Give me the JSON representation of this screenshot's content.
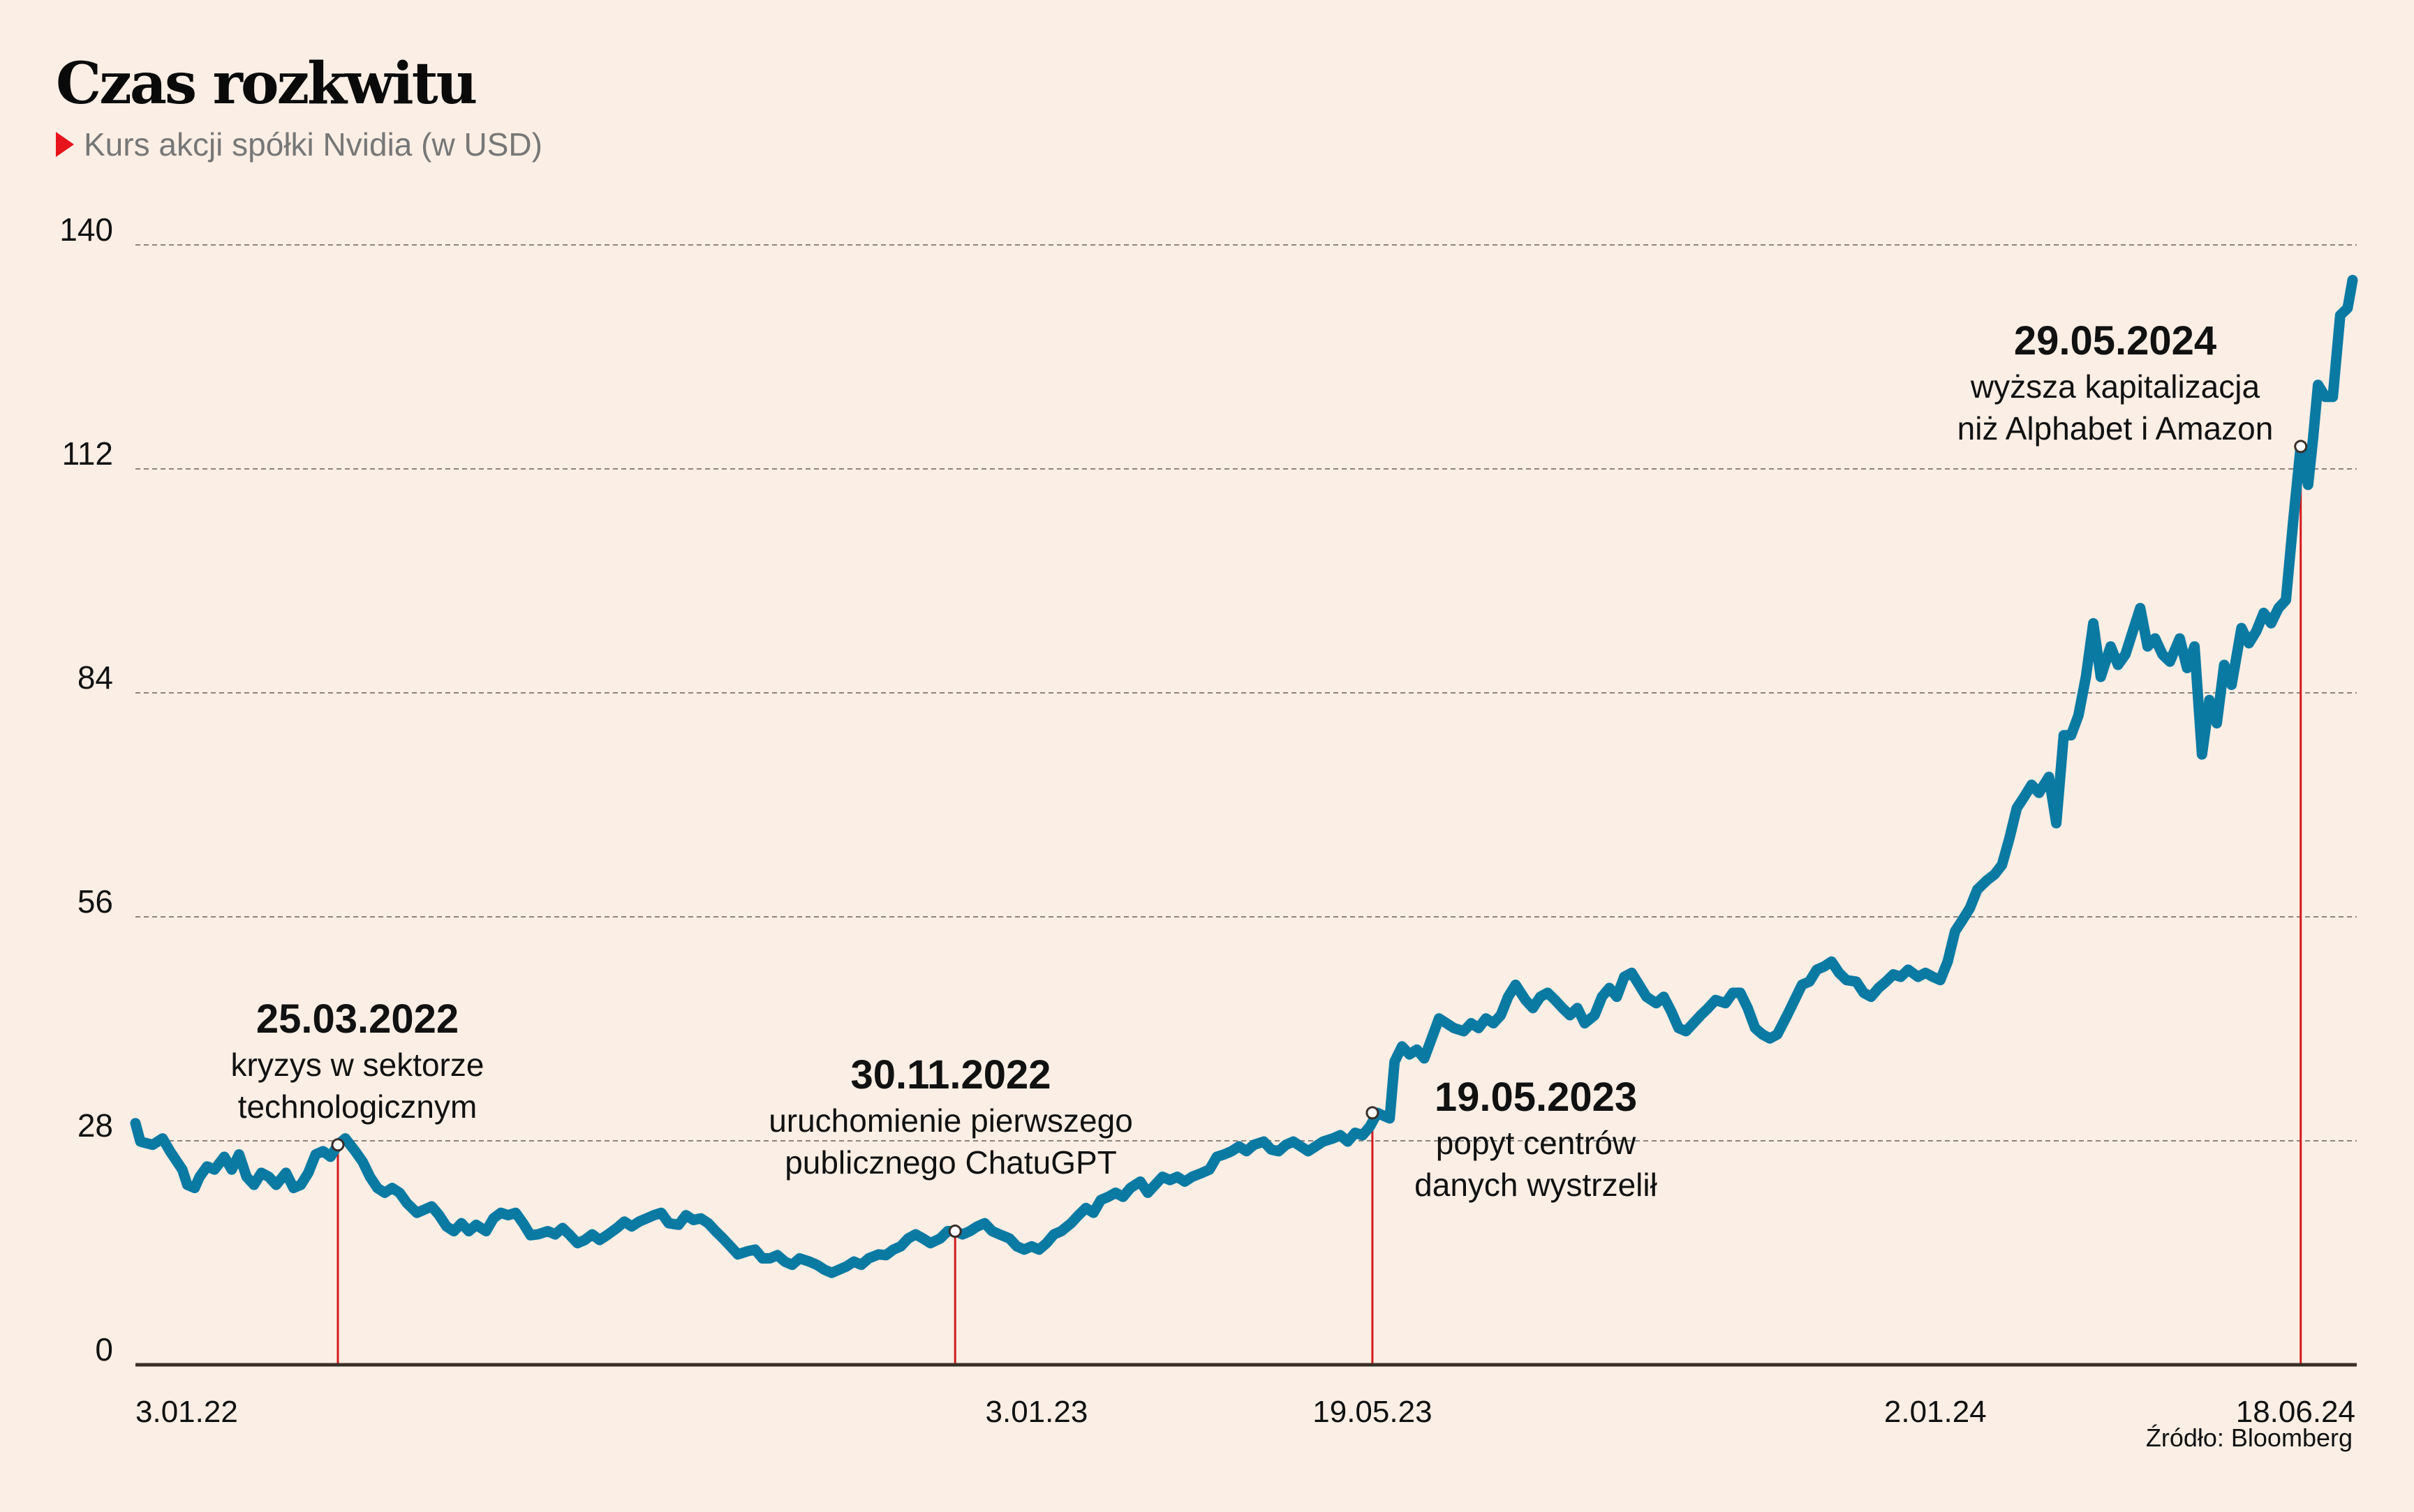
{
  "header": {
    "title": "Czas rozkwitu",
    "subtitle": "Kurs akcji spółki Nvidia (w USD)",
    "subtitle_marker_color": "#e8141c"
  },
  "source": "Źródło: Bloomberg",
  "chart_data": {
    "type": "line",
    "title": "Czas rozkwitu",
    "subtitle": "Kurs akcji spółki Nvidia (w USD)",
    "xlabel": "",
    "ylabel": "",
    "x_unit": "days since 3.01.22",
    "xlim": [
      0,
      898
    ],
    "ylim": [
      0,
      140
    ],
    "grid": true,
    "line_color": "#0a7aa3",
    "marker_line_color": "#d31a1f",
    "yticks": [
      0,
      28,
      56,
      84,
      112,
      140
    ],
    "ytick_labels": [
      "0",
      "28",
      "56",
      "84",
      "112",
      "140"
    ],
    "xticks": [
      {
        "day": 0,
        "label": "3.01.22"
      },
      {
        "day": 365,
        "label": "3.01.23"
      },
      {
        "day": 501,
        "label": "19.05.23"
      },
      {
        "day": 729,
        "label": "2.01.24"
      },
      {
        "day": 897,
        "label": "18.06.24"
      }
    ],
    "annotations": [
      {
        "day": 82,
        "value": 27.5,
        "date": "25.03.2022",
        "lines": [
          "kryzys w sektorze",
          "technologicznym"
        ],
        "placement": "above-left"
      },
      {
        "day": 332,
        "value": 16.7,
        "date": "30.11.2022",
        "lines": [
          "uruchomienie pierwszego",
          "publicznego ChatuGPT"
        ],
        "placement": "above"
      },
      {
        "day": 501,
        "value": 31.5,
        "date": "19.05.2023",
        "lines": [
          "popyt centrów",
          "danych wystrzelił"
        ],
        "placement": "right"
      },
      {
        "day": 877,
        "value": 114.8,
        "date": "29.05.2024",
        "lines": [
          "wyższa kapitalizacja",
          "niż Alphabet i Amazon"
        ],
        "placement": "above-left"
      }
    ],
    "series": [
      {
        "name": "Nvidia",
        "days": [
          0,
          2,
          7,
          11,
          14,
          19,
          21,
          24,
          26,
          29,
          32,
          36,
          39,
          42,
          45,
          48,
          51,
          54,
          57,
          61,
          64,
          67,
          70,
          73,
          76,
          79,
          82,
          85,
          89,
          92,
          95,
          98,
          101,
          104,
          107,
          110,
          114,
          117,
          120,
          123,
          126,
          129,
          132,
          135,
          138,
          142,
          145,
          148,
          151,
          154,
          157,
          160,
          163,
          167,
          170,
          173,
          176,
          179,
          182,
          185,
          188,
          191,
          195,
          198,
          201,
          204,
          207,
          210,
          213,
          216,
          220,
          223,
          226,
          229,
          232,
          235,
          238,
          241,
          244,
          248,
          251,
          254,
          257,
          260,
          263,
          266,
          269,
          273,
          276,
          279,
          282,
          285,
          288,
          291,
          294,
          297,
          301,
          304,
          307,
          310,
          313,
          316,
          319,
          322,
          326,
          329,
          332,
          335,
          338,
          341,
          344,
          347,
          350,
          354,
          357,
          360,
          363,
          366,
          369,
          372,
          375,
          379,
          382,
          385,
          388,
          391,
          394,
          397,
          400,
          403,
          407,
          410,
          413,
          416,
          419,
          422,
          425,
          428,
          432,
          435,
          438,
          441,
          444,
          447,
          450,
          453,
          457,
          460,
          463,
          466,
          469,
          472,
          475,
          478,
          481,
          485,
          488,
          491,
          494,
          497,
          500,
          503,
          505,
          508,
          510,
          513,
          516,
          519,
          522,
          525,
          528,
          531,
          534,
          538,
          541,
          544,
          547,
          550,
          553,
          556,
          559,
          563,
          566,
          569,
          572,
          575,
          578,
          581,
          584,
          587,
          591,
          594,
          597,
          600,
          603,
          606,
          609,
          612,
          616,
          619,
          622,
          625,
          628,
          631,
          634,
          637,
          640,
          644,
          647,
          650,
          653,
          656,
          659,
          662,
          665,
          669,
          672,
          675,
          678,
          681,
          684,
          687,
          690,
          693,
          697,
          700,
          703,
          706,
          709,
          712,
          715,
          718,
          722,
          725,
          728,
          731,
          734,
          737,
          740,
          743,
          746,
          750,
          753,
          756,
          759,
          762,
          765,
          768,
          771,
          775,
          778,
          781,
          784,
          787,
          790,
          793,
          796,
          800,
          803,
          806,
          809,
          812,
          815,
          818,
          821,
          824,
          828,
          831,
          834,
          837,
          840,
          843,
          846,
          849,
          853,
          856,
          859,
          862,
          865,
          868,
          871,
          874,
          877,
          880,
          882,
          884,
          887,
          890,
          893,
          896,
          898
        ],
        "values": [
          30.2,
          27.9,
          27.5,
          28.3,
          26.7,
          24.4,
          22.5,
          22.1,
          23.5,
          24.8,
          24.4,
          26.0,
          24.4,
          26.3,
          23.5,
          22.5,
          24.0,
          23.5,
          22.5,
          24.0,
          22.1,
          22.5,
          24.0,
          26.3,
          26.7,
          26.0,
          27.5,
          28.3,
          26.7,
          25.4,
          23.5,
          22.1,
          21.5,
          22.1,
          21.5,
          20.2,
          19.0,
          19.4,
          19.8,
          18.7,
          17.3,
          16.7,
          17.7,
          16.7,
          17.5,
          16.7,
          18.3,
          19.0,
          18.7,
          19.0,
          17.7,
          16.2,
          16.3,
          16.7,
          16.3,
          17.1,
          16.2,
          15.2,
          15.6,
          16.3,
          15.6,
          16.2,
          17.1,
          17.9,
          17.3,
          17.9,
          18.3,
          18.7,
          19.0,
          17.7,
          17.5,
          18.7,
          18.1,
          18.3,
          17.7,
          16.7,
          15.8,
          14.8,
          13.8,
          14.2,
          14.4,
          13.3,
          13.3,
          13.7,
          12.9,
          12.5,
          13.3,
          12.9,
          12.5,
          11.9,
          11.5,
          11.9,
          12.3,
          12.9,
          12.5,
          13.3,
          13.8,
          13.7,
          14.4,
          14.8,
          15.8,
          16.3,
          15.8,
          15.2,
          15.8,
          16.7,
          16.7,
          16.3,
          16.7,
          17.3,
          17.7,
          16.7,
          16.3,
          15.8,
          14.8,
          14.4,
          14.8,
          14.4,
          15.2,
          16.3,
          16.7,
          17.7,
          18.7,
          19.6,
          19.0,
          20.6,
          21.0,
          21.5,
          21.0,
          22.1,
          22.9,
          21.5,
          22.5,
          23.5,
          23.1,
          23.5,
          22.9,
          23.5,
          24.0,
          24.4,
          26.0,
          26.3,
          26.7,
          27.3,
          26.7,
          27.5,
          27.9,
          26.9,
          26.7,
          27.5,
          27.9,
          27.3,
          26.7,
          27.3,
          27.9,
          28.3,
          28.7,
          27.9,
          29.0,
          28.7,
          29.8,
          31.5,
          31.2,
          30.8,
          37.9,
          39.8,
          38.8,
          39.4,
          38.3,
          40.8,
          43.3,
          42.7,
          42.1,
          41.7,
          42.7,
          42.1,
          43.3,
          42.7,
          43.7,
          46.0,
          47.5,
          45.6,
          44.6,
          46.0,
          46.5,
          45.6,
          44.6,
          43.7,
          44.6,
          42.7,
          43.7,
          46.0,
          47.1,
          46.0,
          48.5,
          49.0,
          47.5,
          46.0,
          45.2,
          46.0,
          44.2,
          42.1,
          41.7,
          42.7,
          43.7,
          44.6,
          45.6,
          45.2,
          46.5,
          46.5,
          44.6,
          42.1,
          41.3,
          40.8,
          41.3,
          43.7,
          45.6,
          47.5,
          47.9,
          49.4,
          49.8,
          50.4,
          49.0,
          48.1,
          47.9,
          46.5,
          46.0,
          47.1,
          47.9,
          48.8,
          48.5,
          49.4,
          48.5,
          49.0,
          48.5,
          48.1,
          50.4,
          54.2,
          55.6,
          57.1,
          59.4,
          60.6,
          61.3,
          62.5,
          65.8,
          69.6,
          71.0,
          72.5,
          71.5,
          73.5,
          67.7,
          78.7,
          78.7,
          81.2,
          86.0,
          92.7,
          86.0,
          89.8,
          87.5,
          88.8,
          91.7,
          94.6,
          89.8,
          90.8,
          88.8,
          87.9,
          90.8,
          87.1,
          89.8,
          76.3,
          83.1,
          80.2,
          87.5,
          85.0,
          92.1,
          90.2,
          91.7,
          94.0,
          92.7,
          94.6,
          95.6,
          105.6,
          114.8,
          110.0,
          115.8,
          122.5,
          121.0,
          121.0,
          131.2,
          132.1,
          135.6
        ]
      }
    ]
  }
}
